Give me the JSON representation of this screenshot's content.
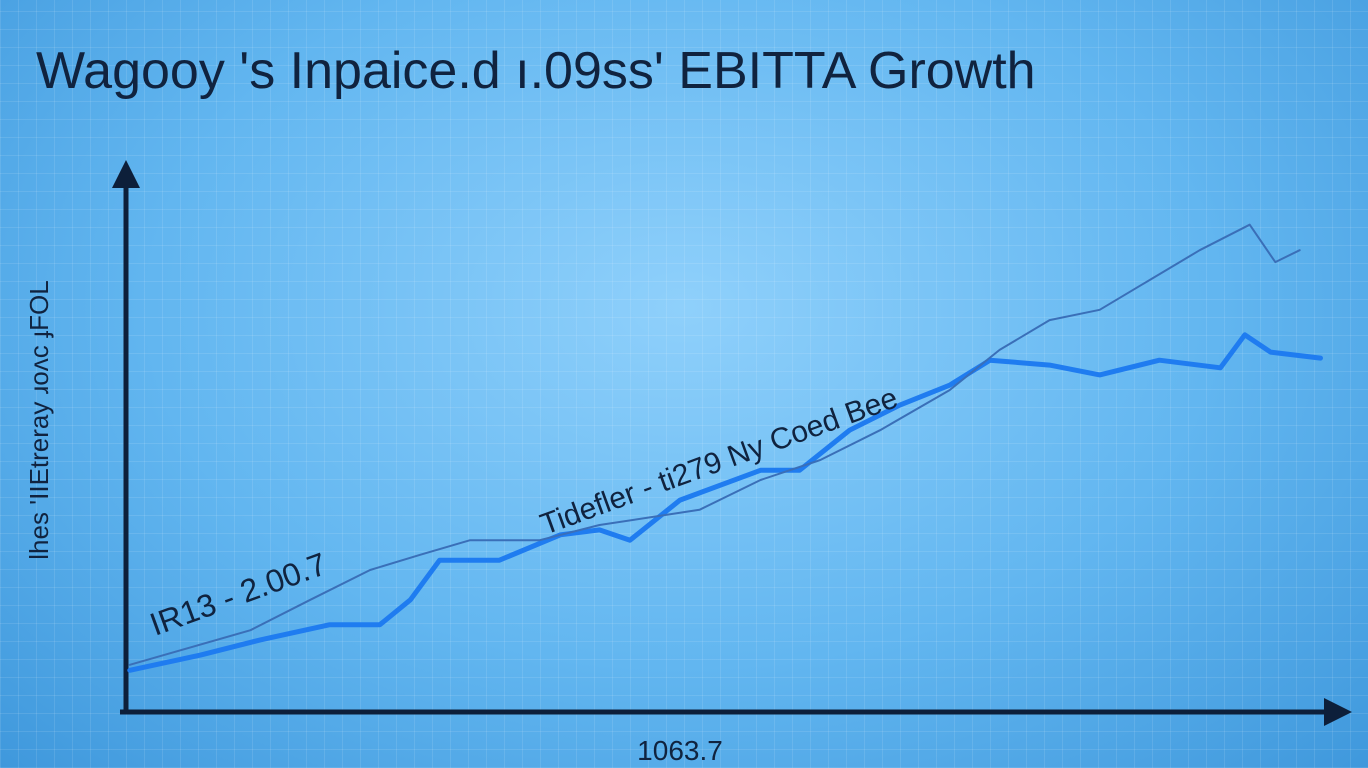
{
  "chart_data": {
    "type": "line",
    "title": "Wagooy 's Inpaice.d ı.09ss' EBITTA Growth",
    "y_label": "lhes 'IIEtreray ɹoʌc ɟFOL",
    "x_label": "1063.7",
    "annotations": [
      "IR13 - 2.00.7",
      "Tidefler - ti279 Ny Coed Bee"
    ],
    "xlim": [
      0,
      100
    ],
    "ylim": [
      0,
      100
    ],
    "series": [
      {
        "color": "#1f7cf0",
        "width": 5,
        "x": [
          0.8,
          6.6,
          11.5,
          17.2,
          21.3,
          23.8,
          26.2,
          31.1,
          36.1,
          39.3,
          41.8,
          45.9,
          52.5,
          55.7,
          59.8,
          63.9,
          68.0,
          71.3,
          76.2,
          80.3,
          85.2,
          90.2,
          92.2,
          94.3,
          98.4
        ],
        "values": [
          7.7,
          10.5,
          13.3,
          16.1,
          16.1,
          20.7,
          28.0,
          28.0,
          32.7,
          33.6,
          31.7,
          39.1,
          44.6,
          44.6,
          52.0,
          56.6,
          60.3,
          64.9,
          64.0,
          62.2,
          64.9,
          63.5,
          69.6,
          66.4,
          65.3
        ]
      },
      {
        "color": "#3a6fb8",
        "width": 2,
        "x": [
          0.8,
          10.7,
          15.6,
          20.5,
          24.6,
          28.7,
          34.4,
          39.3,
          47.5,
          52.5,
          57.4,
          62.3,
          68.0,
          72.1,
          76.2,
          80.3,
          84.4,
          88.5,
          92.6,
          94.7,
          96.7
        ],
        "values": [
          8.7,
          15.1,
          20.7,
          26.2,
          29.0,
          31.7,
          31.7,
          34.5,
          37.3,
          42.8,
          46.5,
          52.0,
          59.4,
          66.8,
          72.3,
          74.2,
          79.7,
          85.2,
          89.9,
          83.0,
          85.2
        ]
      }
    ]
  }
}
